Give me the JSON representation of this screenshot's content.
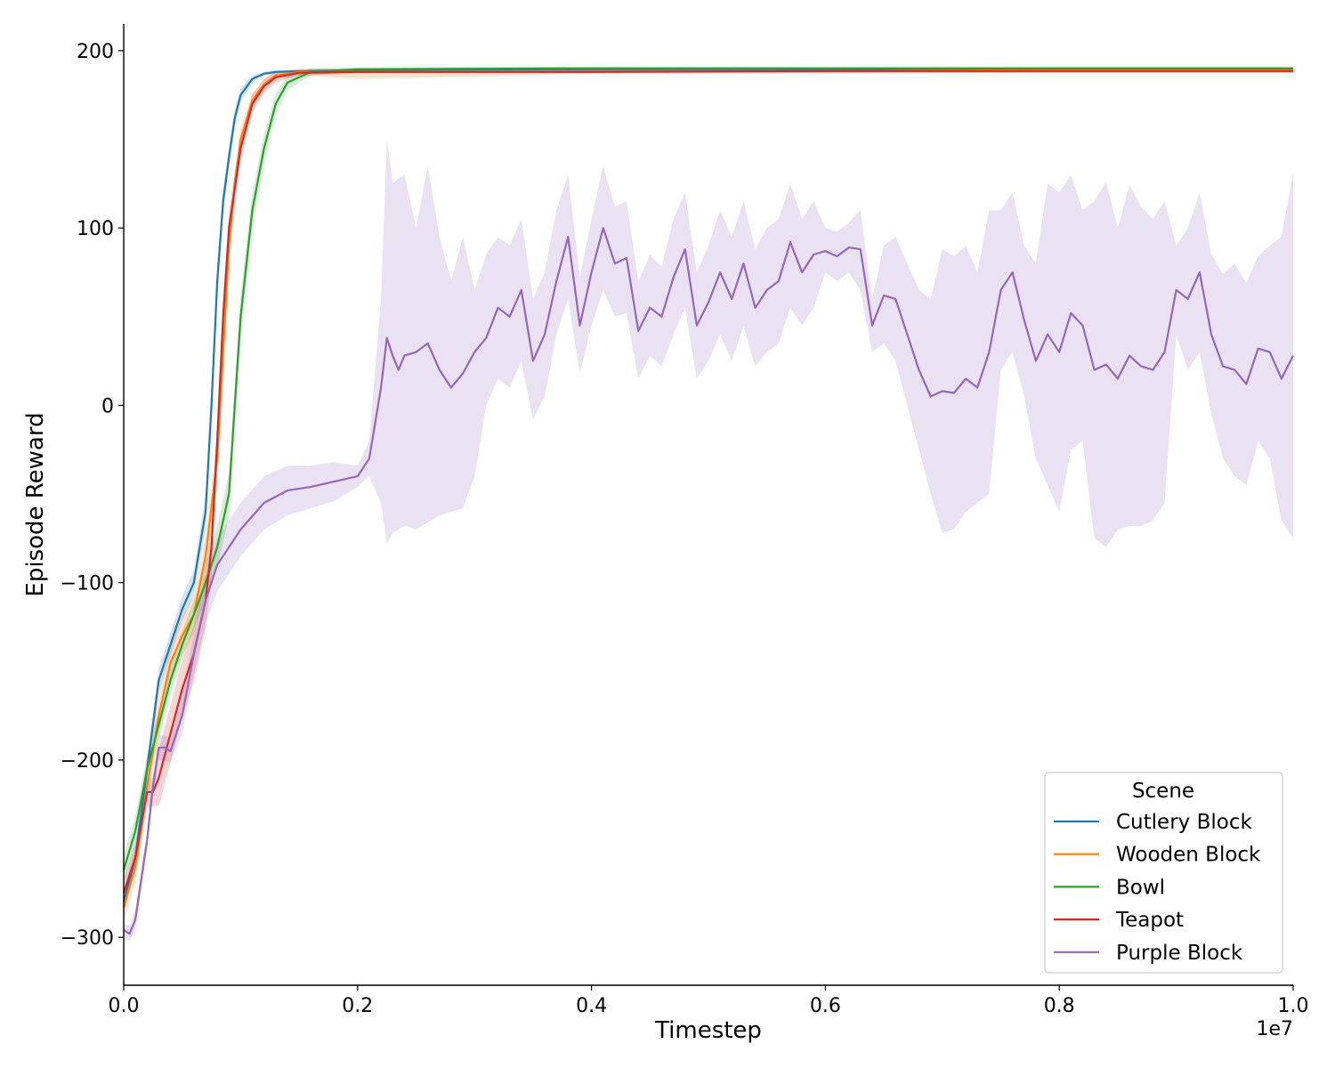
{
  "chart_data": {
    "type": "line",
    "title": "",
    "xlabel": "Timestep",
    "ylabel": "Episode Reward",
    "x_offset_text": "1e7",
    "xlim": [
      0,
      1.0
    ],
    "ylim": [
      -327,
      215
    ],
    "xticks": [
      0.0,
      0.2,
      0.4,
      0.6,
      0.8,
      1.0
    ],
    "xtick_labels": [
      "0.0",
      "0.2",
      "0.4",
      "0.6",
      "0.8",
      "1.0"
    ],
    "yticks": [
      -300,
      -200,
      -100,
      0,
      100,
      200
    ],
    "ytick_labels": [
      "−300",
      "−200",
      "−100",
      "0",
      "100",
      "200"
    ],
    "grid": false,
    "legend": {
      "title": "Scene",
      "placement": "bottom-right"
    },
    "series": [
      {
        "name": "Cutlery Block",
        "color": "#1f77b4",
        "x": [
          0,
          0.01,
          0.02,
          0.03,
          0.04,
          0.05,
          0.06,
          0.07,
          0.075,
          0.08,
          0.085,
          0.09,
          0.095,
          0.1,
          0.11,
          0.12,
          0.13,
          0.15,
          0.2,
          0.4,
          0.6,
          0.8,
          1.0
        ],
        "y": [
          -280,
          -255,
          -205,
          -155,
          -135,
          -115,
          -100,
          -60,
          0,
          70,
          115,
          140,
          162,
          175,
          184,
          187,
          188,
          188.5,
          189,
          189,
          189,
          189.5,
          189.5
        ],
        "lower": [
          -287,
          -262,
          -212,
          -162,
          -142,
          -122,
          -107,
          -70,
          -10,
          60,
          108,
          134,
          157,
          171,
          182,
          186,
          187,
          188,
          188.5,
          188.5,
          188.5,
          189,
          189
        ],
        "upper": [
          -273,
          -248,
          -198,
          -148,
          -128,
          -108,
          -93,
          -50,
          10,
          80,
          122,
          146,
          167,
          179,
          186,
          188,
          189,
          189,
          189.5,
          189.5,
          189.5,
          190,
          190
        ]
      },
      {
        "name": "Wooden Block",
        "color": "#ff7f0e",
        "x": [
          0,
          0.01,
          0.02,
          0.03,
          0.04,
          0.05,
          0.06,
          0.07,
          0.08,
          0.085,
          0.09,
          0.095,
          0.1,
          0.11,
          0.12,
          0.13,
          0.15,
          0.2,
          0.4,
          0.6,
          0.8,
          1.0
        ],
        "y": [
          -283,
          -260,
          -215,
          -175,
          -145,
          -130,
          -118,
          -85,
          -30,
          30,
          90,
          125,
          150,
          172,
          181,
          186,
          188,
          188,
          188.5,
          188.5,
          189,
          189
        ],
        "lower": [
          -292,
          -269,
          -224,
          -186,
          -156,
          -141,
          -129,
          -97,
          -42,
          18,
          80,
          117,
          143,
          168,
          178,
          184,
          186,
          184,
          187,
          187,
          187.5,
          187.5
        ],
        "upper": [
          -274,
          -251,
          -206,
          -164,
          -134,
          -119,
          -107,
          -73,
          -18,
          42,
          100,
          133,
          157,
          176,
          184,
          188,
          190,
          190,
          190,
          190,
          190.5,
          190.5
        ]
      },
      {
        "name": "Bowl",
        "color": "#2ca02c",
        "x": [
          0,
          0.01,
          0.02,
          0.03,
          0.04,
          0.05,
          0.06,
          0.07,
          0.08,
          0.09,
          0.095,
          0.1,
          0.11,
          0.12,
          0.13,
          0.14,
          0.16,
          0.2,
          0.4,
          0.6,
          0.8,
          1.0
        ],
        "y": [
          -262,
          -240,
          -205,
          -180,
          -155,
          -135,
          -118,
          -100,
          -80,
          -50,
          0,
          50,
          110,
          145,
          170,
          182,
          188,
          189.5,
          190,
          190,
          190,
          190
        ],
        "lower": [
          -270,
          -248,
          -213,
          -188,
          -163,
          -143,
          -126,
          -110,
          -92,
          -62,
          -12,
          38,
          100,
          137,
          164,
          178,
          186,
          188.5,
          189,
          189,
          189,
          189
        ],
        "upper": [
          -254,
          -232,
          -197,
          -172,
          -147,
          -127,
          -110,
          -90,
          -68,
          -38,
          12,
          62,
          120,
          153,
          176,
          186,
          190,
          190.5,
          191,
          191,
          191,
          191
        ]
      },
      {
        "name": "Teapot",
        "color": "#d62728",
        "x": [
          0,
          0.01,
          0.02,
          0.025,
          0.03,
          0.04,
          0.05,
          0.06,
          0.07,
          0.075,
          0.08,
          0.085,
          0.09,
          0.1,
          0.11,
          0.12,
          0.13,
          0.15,
          0.2,
          0.4,
          0.6,
          0.8,
          1.0
        ],
        "y": [
          -275,
          -255,
          -218,
          -218,
          -210,
          -185,
          -160,
          -140,
          -110,
          -80,
          -20,
          50,
          100,
          145,
          170,
          180,
          185,
          187.5,
          188,
          188,
          188.5,
          188.5,
          188.5
        ],
        "lower": [
          -283,
          -263,
          -226,
          -226,
          -226,
          -201,
          -176,
          -156,
          -126,
          -96,
          -34,
          38,
          90,
          138,
          165,
          176,
          182,
          186,
          187,
          187,
          187.5,
          187.5,
          187.5
        ],
        "upper": [
          -267,
          -247,
          -210,
          -210,
          -194,
          -169,
          -144,
          -124,
          -94,
          -64,
          -6,
          62,
          110,
          152,
          175,
          184,
          188,
          189,
          189,
          189,
          189.5,
          189.5,
          189.5
        ]
      },
      {
        "name": "Purple Block",
        "color": "#9467bd",
        "x": [
          0,
          0.005,
          0.01,
          0.02,
          0.025,
          0.03,
          0.035,
          0.04,
          0.05,
          0.06,
          0.07,
          0.08,
          0.1,
          0.12,
          0.14,
          0.16,
          0.18,
          0.2,
          0.21,
          0.22,
          0.225,
          0.23,
          0.235,
          0.24,
          0.25,
          0.26,
          0.27,
          0.28,
          0.29,
          0.3,
          0.31,
          0.32,
          0.33,
          0.34,
          0.35,
          0.36,
          0.37,
          0.38,
          0.39,
          0.4,
          0.41,
          0.42,
          0.43,
          0.44,
          0.45,
          0.46,
          0.47,
          0.48,
          0.49,
          0.5,
          0.51,
          0.52,
          0.53,
          0.54,
          0.55,
          0.56,
          0.57,
          0.58,
          0.59,
          0.6,
          0.61,
          0.62,
          0.63,
          0.64,
          0.65,
          0.66,
          0.67,
          0.68,
          0.69,
          0.7,
          0.71,
          0.72,
          0.73,
          0.74,
          0.75,
          0.76,
          0.77,
          0.78,
          0.79,
          0.8,
          0.81,
          0.82,
          0.83,
          0.84,
          0.85,
          0.86,
          0.87,
          0.88,
          0.89,
          0.9,
          0.91,
          0.92,
          0.93,
          0.94,
          0.95,
          0.96,
          0.97,
          0.98,
          0.99,
          1.0
        ],
        "y": [
          -296,
          -298,
          -290,
          -245,
          -215,
          -193,
          -193,
          -195,
          -175,
          -140,
          -110,
          -90,
          -70,
          -55,
          -48,
          -46,
          -43,
          -40,
          -30,
          10,
          38,
          28,
          20,
          28,
          30,
          35,
          20,
          10,
          18,
          30,
          38,
          55,
          50,
          65,
          25,
          40,
          70,
          95,
          45,
          75,
          100,
          80,
          83,
          42,
          55,
          50,
          72,
          88,
          45,
          58,
          75,
          60,
          80,
          55,
          65,
          70,
          92,
          75,
          85,
          87,
          84,
          89,
          88,
          45,
          62,
          60,
          40,
          20,
          5,
          8,
          7,
          15,
          10,
          30,
          65,
          75,
          48,
          25,
          40,
          30,
          52,
          45,
          20,
          23,
          15,
          28,
          22,
          20,
          30,
          65,
          60,
          75,
          40,
          22,
          20,
          12,
          32,
          30,
          15,
          28
        ],
        "lower": [
          -300,
          -302,
          -296,
          -250,
          -222,
          -200,
          -200,
          -202,
          -185,
          -152,
          -123,
          -105,
          -85,
          -70,
          -62,
          -58,
          -54,
          -46,
          -40,
          -55,
          -78,
          -72,
          -70,
          -68,
          -70,
          -66,
          -62,
          -60,
          -58,
          -40,
          0,
          15,
          10,
          25,
          -8,
          5,
          40,
          60,
          18,
          45,
          65,
          50,
          52,
          15,
          28,
          22,
          40,
          55,
          15,
          25,
          40,
          25,
          45,
          22,
          30,
          35,
          55,
          45,
          55,
          75,
          70,
          75,
          65,
          30,
          35,
          25,
          0,
          -25,
          -50,
          -72,
          -70,
          -60,
          -55,
          -50,
          20,
          30,
          5,
          -30,
          -45,
          -60,
          -25,
          -20,
          -75,
          -80,
          -70,
          -68,
          -68,
          -65,
          -55,
          40,
          20,
          30,
          -5,
          -30,
          -40,
          -45,
          -20,
          -30,
          -65,
          -75
        ],
        "upper": [
          -292,
          -294,
          -284,
          -240,
          -208,
          -186,
          -186,
          -188,
          -165,
          -128,
          -97,
          -75,
          -55,
          -40,
          -34,
          -34,
          -32,
          -34,
          -20,
          60,
          150,
          125,
          128,
          130,
          100,
          135,
          95,
          70,
          95,
          65,
          85,
          95,
          90,
          105,
          60,
          75,
          110,
          130,
          72,
          105,
          135,
          112,
          115,
          70,
          85,
          78,
          105,
          120,
          75,
          90,
          110,
          95,
          115,
          88,
          100,
          105,
          125,
          105,
          115,
          100,
          98,
          103,
          110,
          60,
          90,
          95,
          80,
          65,
          60,
          88,
          84,
          90,
          75,
          110,
          110,
          120,
          90,
          80,
          125,
          120,
          130,
          110,
          115,
          126,
          100,
          124,
          112,
          105,
          115,
          90,
          100,
          120,
          85,
          74,
          80,
          69,
          84,
          90,
          95,
          131
        ]
      }
    ]
  }
}
